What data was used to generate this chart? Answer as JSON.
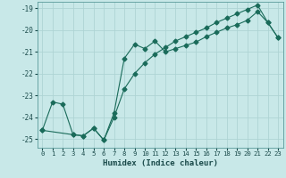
{
  "xlabel": "Humidex (Indice chaleur)",
  "xlim": [
    -0.5,
    23.5
  ],
  "ylim": [
    -25.4,
    -18.7
  ],
  "yticks": [
    -25,
    -24,
    -23,
    -22,
    -21,
    -20,
    -19
  ],
  "xticks": [
    0,
    1,
    2,
    3,
    4,
    5,
    6,
    7,
    8,
    9,
    10,
    11,
    12,
    13,
    14,
    15,
    16,
    17,
    18,
    19,
    20,
    21,
    22,
    23
  ],
  "bg_color": "#c8e8e8",
  "grid_color": "#aed4d4",
  "line_color": "#1a6b5a",
  "line1_x": [
    0,
    1,
    2,
    3,
    4,
    5,
    6,
    7,
    8,
    9,
    10,
    11,
    12,
    13,
    14,
    15,
    16,
    17,
    18,
    19,
    20,
    21,
    22,
    23
  ],
  "line1_y": [
    -24.6,
    -23.3,
    -23.4,
    -24.8,
    -24.85,
    -24.5,
    -25.05,
    -23.8,
    -21.3,
    -20.65,
    -20.85,
    -20.5,
    -21.0,
    -20.85,
    -20.7,
    -20.55,
    -20.3,
    -20.1,
    -19.9,
    -19.75,
    -19.55,
    -19.15,
    -19.65,
    -20.35
  ],
  "line2_x": [
    0,
    3,
    4,
    5,
    6,
    7,
    8,
    9,
    10,
    11,
    12,
    13,
    14,
    15,
    16,
    17,
    18,
    19,
    20,
    21,
    22,
    23
  ],
  "line2_y": [
    -24.6,
    -24.8,
    -24.85,
    -24.5,
    -25.05,
    -24.0,
    -22.7,
    -22.0,
    -21.5,
    -21.1,
    -20.8,
    -20.5,
    -20.3,
    -20.1,
    -19.9,
    -19.65,
    -19.45,
    -19.25,
    -19.05,
    -18.85,
    -19.65,
    -20.35
  ],
  "marker": "D",
  "markersize": 2.5
}
